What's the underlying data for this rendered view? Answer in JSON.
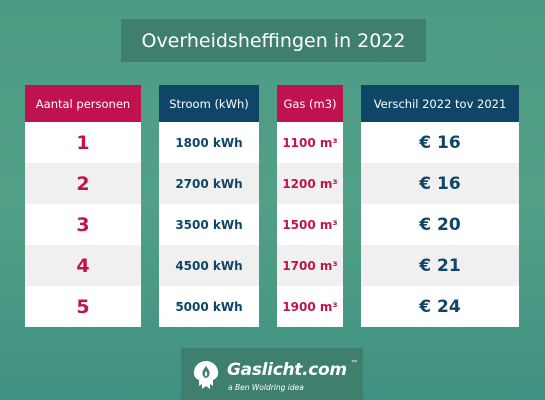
{
  "title": "Overheidsheffingen in 2022",
  "columns": [
    {
      "header": "Aantal personen",
      "values": [
        "1",
        "2",
        "3",
        "4",
        "5"
      ]
    },
    {
      "header": "Stroom (kWh)",
      "values": [
        "1800 kWh",
        "2700 kWh",
        "3500 kWh",
        "4500 kWh",
        "5000 kWh"
      ]
    },
    {
      "header": "Gas (m3)",
      "values": [
        "1100 m³",
        "1200 m³",
        "1500 m³",
        "1700 m³",
        "1900 m³"
      ]
    },
    {
      "header": "Verschil 2022 tov 2021",
      "values": [
        "€ 16",
        "€ 16",
        "€ 20",
        "€ 21",
        "€ 24"
      ]
    }
  ],
  "logo": {
    "brand": "Gaslicht.com",
    "trademark": "™",
    "tagline": "a Ben Woldring idea",
    "icon": "flame-logo-icon"
  },
  "colors": {
    "background": "#4f9d86",
    "title_box": "#3e7f6d",
    "accent_red": "#c0124f",
    "navy": "#0f4566",
    "row_alt": "#f0f0f0"
  }
}
